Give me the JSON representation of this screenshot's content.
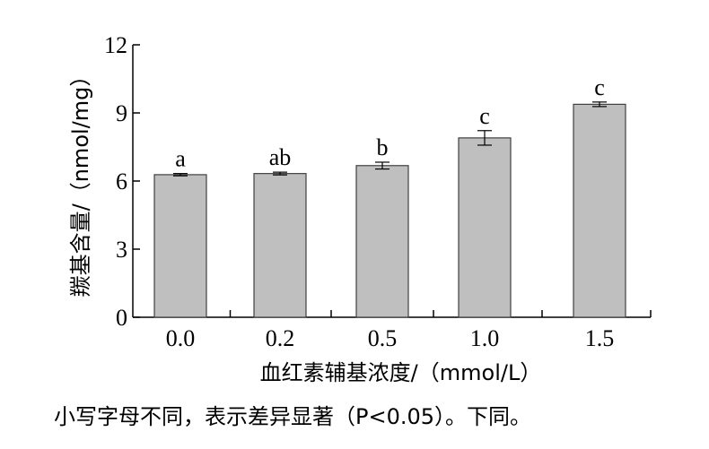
{
  "chart_data": {
    "type": "bar",
    "categories": [
      "0.0",
      "0.2",
      "0.5",
      "1.0",
      "1.5"
    ],
    "values": [
      6.28,
      6.33,
      6.68,
      7.9,
      9.38
    ],
    "errors": [
      0.05,
      0.06,
      0.15,
      0.32,
      0.1
    ],
    "significance": [
      "a",
      "ab",
      "b",
      "c",
      "c"
    ],
    "xlabel": "血红素辅基浓度/（mmol/L）",
    "ylabel": "羰基含量/（nmol/mg）",
    "ylim": [
      0,
      12
    ],
    "yticks": [
      0,
      3,
      6,
      9,
      12
    ],
    "yticklabels": [
      "0",
      "3",
      "6",
      "9",
      "12"
    ],
    "bar_color": "#bfbfbf",
    "grid": false
  },
  "footnote": "小写字母不同，表示差异显著（P<0.05）。下同。"
}
